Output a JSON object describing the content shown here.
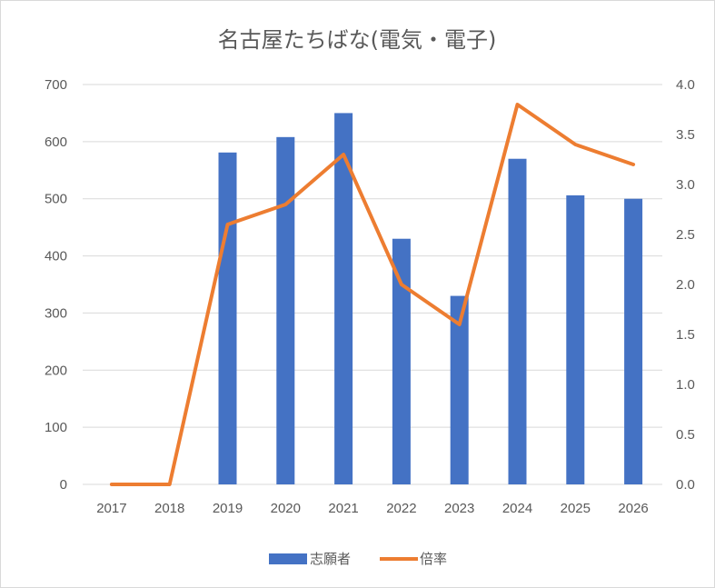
{
  "chart_data": {
    "type": "bar",
    "title": "名古屋たちばな(電気・電子)",
    "categories": [
      "2017",
      "2018",
      "2019",
      "2020",
      "2021",
      "2022",
      "2023",
      "2024",
      "2025",
      "2026"
    ],
    "series": [
      {
        "name": "志願者",
        "type": "bar",
        "axis": "left",
        "color": "#4472C4",
        "values": [
          0,
          0,
          581,
          608,
          650,
          430,
          330,
          570,
          506,
          500
        ]
      },
      {
        "name": "倍率",
        "type": "line",
        "axis": "right",
        "color": "#ED7D31",
        "values": [
          0.0,
          0.0,
          2.6,
          2.8,
          3.3,
          2.0,
          1.6,
          3.8,
          3.4,
          3.2
        ]
      }
    ],
    "ylim": [
      0,
      700
    ],
    "yticks": [
      "0",
      "100",
      "200",
      "300",
      "400",
      "500",
      "600",
      "700"
    ],
    "y2lim": [
      0,
      4.0
    ],
    "y2ticks": [
      "0.0",
      "0.5",
      "1.0",
      "1.5",
      "2.0",
      "2.5",
      "3.0",
      "3.5",
      "4.0"
    ],
    "grid": true,
    "gridColor": "#d9d9d9",
    "legend_position": "bottom"
  }
}
